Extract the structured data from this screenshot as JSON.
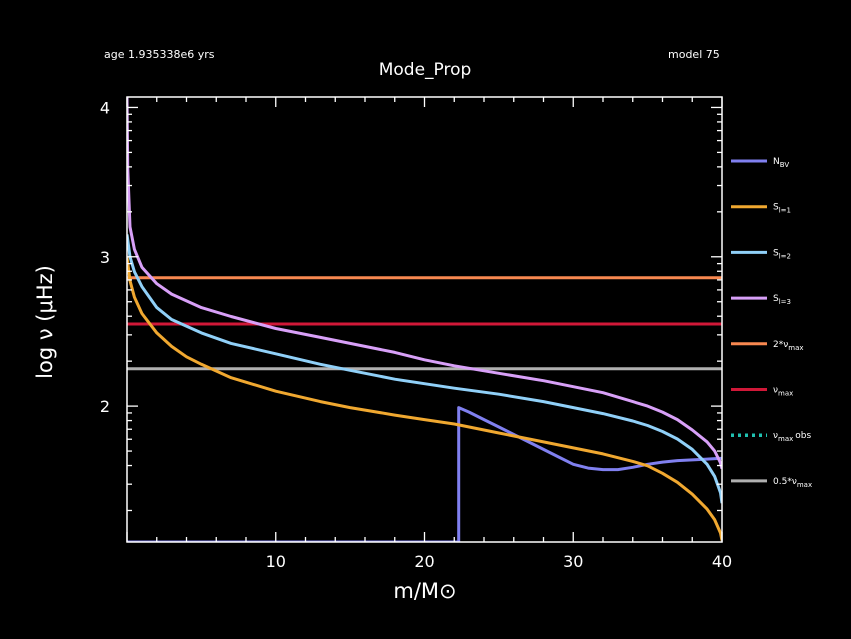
{
  "header": {
    "age_text": "age 1.935338e6 yrs",
    "model_text": "model 75"
  },
  "chart_data": {
    "type": "line",
    "title": "Mode_Prop",
    "xlabel": "m/M⊙",
    "ylabel": "log ν (μHz)",
    "xlim": [
      0,
      40
    ],
    "ylim": [
      1.09,
      4.07
    ],
    "x_ticks": [
      10,
      20,
      30,
      40
    ],
    "y_ticks": [
      2,
      3,
      4
    ],
    "grid": false,
    "legend_position": "right",
    "series": [
      {
        "name": "N_BV",
        "color": "#8080f0",
        "points": [
          [
            0,
            1.09
          ],
          [
            22.3,
            1.09
          ],
          [
            22.3,
            1.99
          ],
          [
            23,
            1.96
          ],
          [
            24,
            1.91
          ],
          [
            25,
            1.86
          ],
          [
            26,
            1.81
          ],
          [
            27,
            1.76
          ],
          [
            28,
            1.71
          ],
          [
            29,
            1.66
          ],
          [
            30,
            1.61
          ],
          [
            31,
            1.585
          ],
          [
            32,
            1.575
          ],
          [
            33,
            1.575
          ],
          [
            34,
            1.59
          ],
          [
            35,
            1.61
          ],
          [
            36,
            1.625
          ],
          [
            37,
            1.635
          ],
          [
            38,
            1.64
          ],
          [
            39,
            1.645
          ],
          [
            39.8,
            1.65
          ],
          [
            40,
            1.65
          ]
        ]
      },
      {
        "name": "S_l=1",
        "color": "#f0a830",
        "points": [
          [
            0,
            3.0
          ],
          [
            0.2,
            2.84
          ],
          [
            0.5,
            2.73
          ],
          [
            1,
            2.62
          ],
          [
            2,
            2.49
          ],
          [
            3,
            2.4
          ],
          [
            4,
            2.33
          ],
          [
            5,
            2.28
          ],
          [
            7,
            2.19
          ],
          [
            10,
            2.1
          ],
          [
            13,
            2.03
          ],
          [
            15,
            1.99
          ],
          [
            18,
            1.94
          ],
          [
            20,
            1.91
          ],
          [
            22,
            1.88
          ],
          [
            25,
            1.82
          ],
          [
            28,
            1.76
          ],
          [
            30,
            1.72
          ],
          [
            32,
            1.68
          ],
          [
            34,
            1.63
          ],
          [
            35,
            1.6
          ],
          [
            36,
            1.55
          ],
          [
            37,
            1.49
          ],
          [
            38,
            1.41
          ],
          [
            39,
            1.31
          ],
          [
            39.5,
            1.24
          ],
          [
            39.9,
            1.15
          ],
          [
            40,
            1.1
          ]
        ]
      },
      {
        "name": "S_l=2",
        "color": "#90d0f8",
        "points": [
          [
            0,
            3.15
          ],
          [
            0.2,
            3.0
          ],
          [
            0.5,
            2.9
          ],
          [
            1,
            2.8
          ],
          [
            2,
            2.66
          ],
          [
            3,
            2.58
          ],
          [
            5,
            2.49
          ],
          [
            7,
            2.42
          ],
          [
            10,
            2.35
          ],
          [
            13,
            2.28
          ],
          [
            15,
            2.24
          ],
          [
            18,
            2.18
          ],
          [
            20,
            2.15
          ],
          [
            22,
            2.12
          ],
          [
            25,
            2.08
          ],
          [
            28,
            2.03
          ],
          [
            30,
            1.99
          ],
          [
            32,
            1.95
          ],
          [
            34,
            1.9
          ],
          [
            35,
            1.87
          ],
          [
            36,
            1.83
          ],
          [
            37,
            1.78
          ],
          [
            38,
            1.71
          ],
          [
            39,
            1.61
          ],
          [
            39.5,
            1.53
          ],
          [
            39.9,
            1.42
          ],
          [
            40,
            1.35
          ]
        ]
      },
      {
        "name": "S_l=3",
        "color": "#d8a0f8",
        "points": [
          [
            0,
            4.07
          ],
          [
            0.05,
            3.6
          ],
          [
            0.2,
            3.2
          ],
          [
            0.5,
            3.05
          ],
          [
            1,
            2.93
          ],
          [
            2,
            2.82
          ],
          [
            3,
            2.75
          ],
          [
            5,
            2.66
          ],
          [
            7,
            2.6
          ],
          [
            10,
            2.52
          ],
          [
            13,
            2.46
          ],
          [
            15,
            2.42
          ],
          [
            18,
            2.36
          ],
          [
            20,
            2.31
          ],
          [
            22,
            2.27
          ],
          [
            25,
            2.22
          ],
          [
            28,
            2.17
          ],
          [
            30,
            2.13
          ],
          [
            32,
            2.09
          ],
          [
            34,
            2.03
          ],
          [
            35,
            2.0
          ],
          [
            36,
            1.96
          ],
          [
            37,
            1.91
          ],
          [
            38,
            1.84
          ],
          [
            39,
            1.76
          ],
          [
            39.5,
            1.7
          ],
          [
            39.9,
            1.62
          ],
          [
            40,
            1.58
          ]
        ]
      },
      {
        "name": "2*ν_max",
        "color": "#f88850",
        "points": [
          [
            0,
            2.86
          ],
          [
            40,
            2.86
          ]
        ]
      },
      {
        "name": "ν_max",
        "color": "#d01838",
        "points": [
          [
            0,
            2.55
          ],
          [
            40,
            2.55
          ]
        ]
      },
      {
        "name": "ν_max_obs",
        "color": "#20c0b0",
        "dashed": true,
        "points": []
      },
      {
        "name": "0.5*ν_max",
        "color": "#b0b0b0",
        "points": [
          [
            0,
            2.25
          ],
          [
            40,
            2.25
          ]
        ]
      }
    ]
  },
  "legend": {
    "items": [
      {
        "base": "N",
        "sub": "BV",
        "suffix": ""
      },
      {
        "base": "S",
        "sub": "l=1",
        "suffix": ""
      },
      {
        "base": "S",
        "sub": "l=2",
        "suffix": ""
      },
      {
        "base": "S",
        "sub": "l=3",
        "suffix": ""
      },
      {
        "base": "2*ν",
        "sub": "max",
        "suffix": ""
      },
      {
        "base": "ν",
        "sub": "max",
        "suffix": ""
      },
      {
        "base": "ν",
        "sub": "max",
        "suffix": "obs"
      },
      {
        "base": "0.5*ν",
        "sub": "max",
        "suffix": ""
      }
    ]
  }
}
